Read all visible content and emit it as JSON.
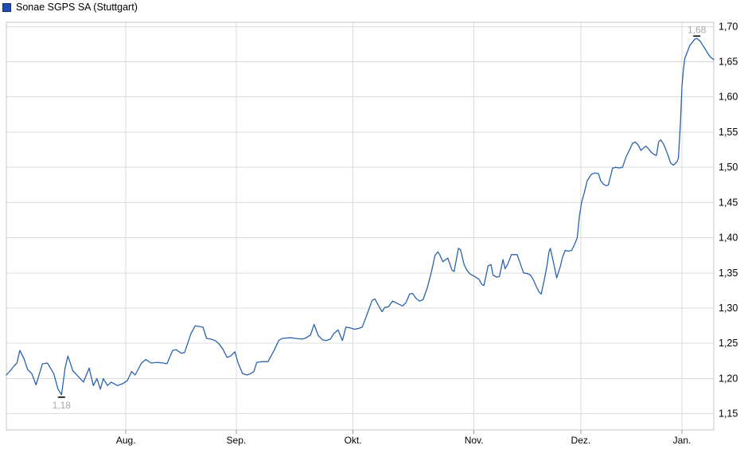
{
  "header": {
    "title": "Sonae SGPS SA (Stuttgart)"
  },
  "colors": {
    "line": "#2b62ad",
    "legend_fill": "#1f4db0",
    "legend_border": "#142e66",
    "grid": "#dcdcdc",
    "plot_border": "#c4c4c4",
    "axis_text": "#000000",
    "tick_mark": "#999999",
    "annotation_text": "#a9a9a9",
    "annotation_tick": "#000000",
    "background": "#ffffff"
  },
  "chart_data": {
    "type": "line",
    "title": "Sonae SGPS SA (Stuttgart)",
    "legend_position": "top-left",
    "grid": true,
    "y_axis": {
      "position": "right",
      "min": 1.127,
      "max": 1.706,
      "ticks": [
        {
          "value": 1.7,
          "label": "1,70"
        },
        {
          "value": 1.65,
          "label": "1,65"
        },
        {
          "value": 1.6,
          "label": "1,60"
        },
        {
          "value": 1.55,
          "label": "1,55"
        },
        {
          "value": 1.5,
          "label": "1,50"
        },
        {
          "value": 1.45,
          "label": "1,45"
        },
        {
          "value": 1.4,
          "label": "1,40"
        },
        {
          "value": 1.35,
          "label": "1,35"
        },
        {
          "value": 1.3,
          "label": "1,30"
        },
        {
          "value": 1.25,
          "label": "1,25"
        },
        {
          "value": 1.2,
          "label": "1,20"
        },
        {
          "value": 1.15,
          "label": "1,15"
        }
      ]
    },
    "x_axis": {
      "position": "bottom",
      "ticks": [
        {
          "f": 0.169,
          "label": "Aug."
        },
        {
          "f": 0.325,
          "label": "Sep."
        },
        {
          "f": 0.49,
          "label": "Okt."
        },
        {
          "f": 0.661,
          "label": "Nov."
        },
        {
          "f": 0.812,
          "label": "Dez."
        },
        {
          "f": 0.955,
          "label": "Jan."
        }
      ]
    },
    "annotations": [
      {
        "type": "low",
        "label": "1,18",
        "f": 0.078,
        "value": 1.177,
        "position": "below"
      },
      {
        "type": "high",
        "label": "1,68",
        "f": 0.976,
        "value": 1.683,
        "position": "above"
      }
    ],
    "series": [
      {
        "name": "Sonae SGPS SA (Stuttgart)",
        "points": [
          [
            0.0,
            1.205
          ],
          [
            0.007,
            1.213
          ],
          [
            0.011,
            1.218
          ],
          [
            0.015,
            1.222
          ],
          [
            0.019,
            1.24
          ],
          [
            0.025,
            1.228
          ],
          [
            0.03,
            1.213
          ],
          [
            0.036,
            1.207
          ],
          [
            0.042,
            1.191
          ],
          [
            0.051,
            1.221
          ],
          [
            0.058,
            1.222
          ],
          [
            0.067,
            1.207
          ],
          [
            0.073,
            1.185
          ],
          [
            0.078,
            1.177
          ],
          [
            0.083,
            1.215
          ],
          [
            0.087,
            1.232
          ],
          [
            0.094,
            1.211
          ],
          [
            0.098,
            1.207
          ],
          [
            0.109,
            1.195
          ],
          [
            0.117,
            1.215
          ],
          [
            0.123,
            1.19
          ],
          [
            0.128,
            1.2
          ],
          [
            0.133,
            1.185
          ],
          [
            0.137,
            1.2
          ],
          [
            0.143,
            1.19
          ],
          [
            0.148,
            1.195
          ],
          [
            0.157,
            1.19
          ],
          [
            0.165,
            1.193
          ],
          [
            0.171,
            1.197
          ],
          [
            0.177,
            1.21
          ],
          [
            0.182,
            1.205
          ],
          [
            0.191,
            1.222
          ],
          [
            0.197,
            1.227
          ],
          [
            0.205,
            1.222
          ],
          [
            0.213,
            1.223
          ],
          [
            0.222,
            1.222
          ],
          [
            0.227,
            1.221
          ],
          [
            0.235,
            1.24
          ],
          [
            0.24,
            1.241
          ],
          [
            0.247,
            1.236
          ],
          [
            0.252,
            1.237
          ],
          [
            0.261,
            1.264
          ],
          [
            0.267,
            1.275
          ],
          [
            0.272,
            1.274
          ],
          [
            0.278,
            1.273
          ],
          [
            0.283,
            1.257
          ],
          [
            0.289,
            1.256
          ],
          [
            0.295,
            1.254
          ],
          [
            0.3,
            1.25
          ],
          [
            0.306,
            1.242
          ],
          [
            0.312,
            1.23
          ],
          [
            0.317,
            1.232
          ],
          [
            0.323,
            1.238
          ],
          [
            0.328,
            1.221
          ],
          [
            0.334,
            1.207
          ],
          [
            0.34,
            1.205
          ],
          [
            0.345,
            1.207
          ],
          [
            0.35,
            1.21
          ],
          [
            0.354,
            1.223
          ],
          [
            0.362,
            1.224
          ],
          [
            0.37,
            1.224
          ],
          [
            0.379,
            1.241
          ],
          [
            0.385,
            1.254
          ],
          [
            0.39,
            1.257
          ],
          [
            0.402,
            1.258
          ],
          [
            0.409,
            1.257
          ],
          [
            0.418,
            1.256
          ],
          [
            0.424,
            1.258
          ],
          [
            0.43,
            1.262
          ],
          [
            0.435,
            1.277
          ],
          [
            0.441,
            1.261
          ],
          [
            0.447,
            1.255
          ],
          [
            0.452,
            1.254
          ],
          [
            0.458,
            1.256
          ],
          [
            0.463,
            1.264
          ],
          [
            0.469,
            1.269
          ],
          [
            0.475,
            1.254
          ],
          [
            0.48,
            1.273
          ],
          [
            0.486,
            1.272
          ],
          [
            0.492,
            1.27
          ],
          [
            0.497,
            1.271
          ],
          [
            0.503,
            1.273
          ],
          [
            0.508,
            1.286
          ],
          [
            0.517,
            1.311
          ],
          [
            0.521,
            1.313
          ],
          [
            0.528,
            1.3
          ],
          [
            0.531,
            1.295
          ],
          [
            0.535,
            1.301
          ],
          [
            0.54,
            1.302
          ],
          [
            0.546,
            1.31
          ],
          [
            0.55,
            1.308
          ],
          [
            0.556,
            1.305
          ],
          [
            0.56,
            1.303
          ],
          [
            0.565,
            1.308
          ],
          [
            0.57,
            1.32
          ],
          [
            0.574,
            1.321
          ],
          [
            0.579,
            1.314
          ],
          [
            0.584,
            1.31
          ],
          [
            0.589,
            1.312
          ],
          [
            0.595,
            1.329
          ],
          [
            0.601,
            1.352
          ],
          [
            0.606,
            1.375
          ],
          [
            0.61,
            1.38
          ],
          [
            0.613,
            1.375
          ],
          [
            0.617,
            1.366
          ],
          [
            0.621,
            1.369
          ],
          [
            0.624,
            1.371
          ],
          [
            0.63,
            1.354
          ],
          [
            0.633,
            1.352
          ],
          [
            0.639,
            1.385
          ],
          [
            0.642,
            1.383
          ],
          [
            0.647,
            1.362
          ],
          [
            0.651,
            1.354
          ],
          [
            0.655,
            1.349
          ],
          [
            0.658,
            1.347
          ],
          [
            0.662,
            1.345
          ],
          [
            0.668,
            1.341
          ],
          [
            0.672,
            1.334
          ],
          [
            0.675,
            1.332
          ],
          [
            0.681,
            1.36
          ],
          [
            0.685,
            1.362
          ],
          [
            0.688,
            1.347
          ],
          [
            0.693,
            1.344
          ],
          [
            0.697,
            1.345
          ],
          [
            0.702,
            1.369
          ],
          [
            0.705,
            1.356
          ],
          [
            0.709,
            1.363
          ],
          [
            0.714,
            1.376
          ],
          [
            0.722,
            1.376
          ],
          [
            0.728,
            1.359
          ],
          [
            0.731,
            1.35
          ],
          [
            0.737,
            1.349
          ],
          [
            0.741,
            1.347
          ],
          [
            0.745,
            1.34
          ],
          [
            0.749,
            1.331
          ],
          [
            0.753,
            1.323
          ],
          [
            0.756,
            1.32
          ],
          [
            0.76,
            1.338
          ],
          [
            0.764,
            1.359
          ],
          [
            0.767,
            1.38
          ],
          [
            0.769,
            1.385
          ],
          [
            0.774,
            1.362
          ],
          [
            0.778,
            1.343
          ],
          [
            0.783,
            1.359
          ],
          [
            0.786,
            1.372
          ],
          [
            0.79,
            1.382
          ],
          [
            0.794,
            1.381
          ],
          [
            0.799,
            1.382
          ],
          [
            0.803,
            1.39
          ],
          [
            0.807,
            1.4
          ],
          [
            0.81,
            1.43
          ],
          [
            0.813,
            1.45
          ],
          [
            0.817,
            1.464
          ],
          [
            0.821,
            1.481
          ],
          [
            0.827,
            1.49
          ],
          [
            0.832,
            1.492
          ],
          [
            0.837,
            1.491
          ],
          [
            0.84,
            1.481
          ],
          [
            0.844,
            1.476
          ],
          [
            0.848,
            1.474
          ],
          [
            0.851,
            1.475
          ],
          [
            0.857,
            1.499
          ],
          [
            0.862,
            1.5
          ],
          [
            0.866,
            1.499
          ],
          [
            0.871,
            1.5
          ],
          [
            0.876,
            1.515
          ],
          [
            0.882,
            1.527
          ],
          [
            0.885,
            1.534
          ],
          [
            0.889,
            1.536
          ],
          [
            0.893,
            1.532
          ],
          [
            0.897,
            1.524
          ],
          [
            0.9,
            1.527
          ],
          [
            0.904,
            1.53
          ],
          [
            0.908,
            1.526
          ],
          [
            0.911,
            1.522
          ],
          [
            0.916,
            1.518
          ],
          [
            0.919,
            1.517
          ],
          [
            0.922,
            1.536
          ],
          [
            0.925,
            1.539
          ],
          [
            0.929,
            1.533
          ],
          [
            0.932,
            1.526
          ],
          [
            0.936,
            1.515
          ],
          [
            0.939,
            1.506
          ],
          [
            0.943,
            1.503
          ],
          [
            0.946,
            1.506
          ],
          [
            0.948,
            1.508
          ],
          [
            0.95,
            1.513
          ],
          [
            0.953,
            1.565
          ],
          [
            0.955,
            1.615
          ],
          [
            0.957,
            1.638
          ],
          [
            0.959,
            1.655
          ],
          [
            0.963,
            1.665
          ],
          [
            0.966,
            1.673
          ],
          [
            0.97,
            1.678
          ],
          [
            0.973,
            1.682
          ],
          [
            0.976,
            1.683
          ],
          [
            0.981,
            1.679
          ],
          [
            0.984,
            1.674
          ],
          [
            0.988,
            1.668
          ],
          [
            0.992,
            1.661
          ],
          [
            0.996,
            1.656
          ],
          [
            1.0,
            1.653
          ]
        ]
      }
    ]
  }
}
